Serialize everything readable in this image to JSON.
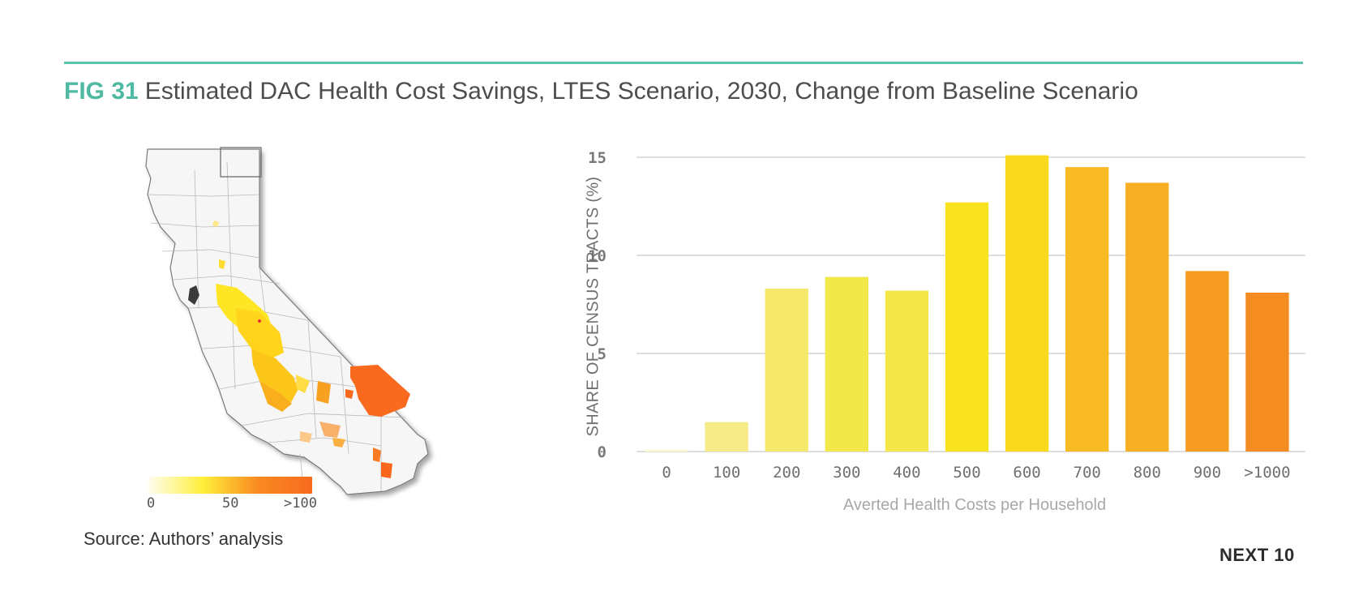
{
  "header": {
    "fig_label": "FIG 31",
    "title": "Estimated DAC Health Cost Savings, LTES Scenario, 2030, Change from Baseline Scenario",
    "accent_color": "#5cc3ad"
  },
  "map": {
    "legend": {
      "min_label": "0",
      "mid_label": "50",
      "max_label": ">100",
      "gradient_colors": [
        "#fffef0",
        "#ffee3a",
        "#f98a20",
        "#f86a1f"
      ]
    }
  },
  "source": "Source: Authors’ analysis",
  "brand": "NEXT 10",
  "chart_data": {
    "type": "bar",
    "ylabel": "SHARE OF CENSUS TRACTS (%)",
    "xlabel": "Averted Health Costs per Household",
    "categories": [
      "0",
      "100",
      "200",
      "300",
      "400",
      "500",
      "600",
      "700",
      "800",
      "900",
      ">1000"
    ],
    "values": [
      0.1,
      1.5,
      8.3,
      8.9,
      8.2,
      12.7,
      15.1,
      14.5,
      13.7,
      9.2,
      8.1
    ],
    "colors": [
      "#fdfbd0",
      "#f7eb87",
      "#f6e86a",
      "#f3e84a",
      "#f5e64a",
      "#f9e320",
      "#f8d91b",
      "#f9bb23",
      "#f9af24",
      "#f79c23",
      "#f58c22"
    ],
    "yticks": [
      0,
      5,
      10,
      15
    ],
    "ylim": [
      0,
      15
    ],
    "grid": true
  }
}
